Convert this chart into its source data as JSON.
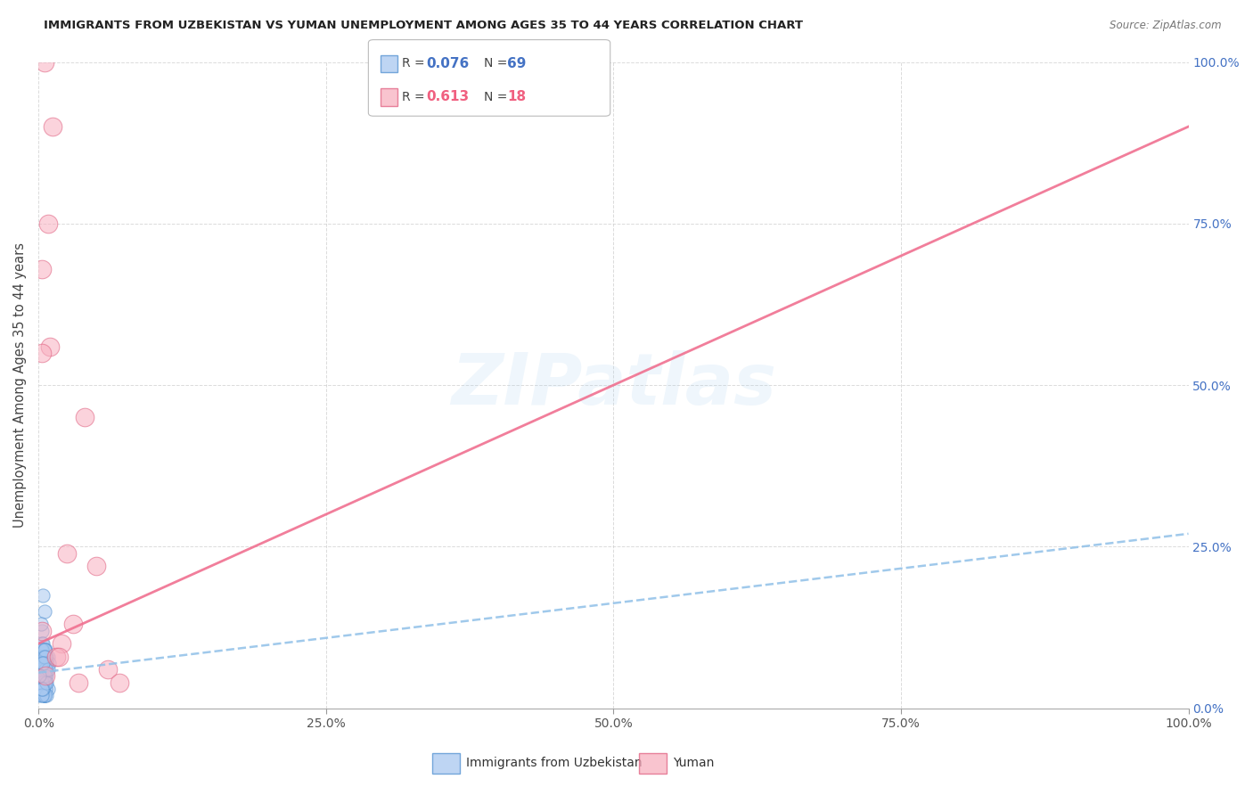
{
  "title": "IMMIGRANTS FROM UZBEKISTAN VS YUMAN UNEMPLOYMENT AMONG AGES 35 TO 44 YEARS CORRELATION CHART",
  "source": "Source: ZipAtlas.com",
  "ylabel": "Unemployment Among Ages 35 to 44 years",
  "xlim": [
    0,
    1
  ],
  "ylim": [
    0,
    1
  ],
  "xticks": [
    0,
    0.25,
    0.5,
    0.75,
    1.0
  ],
  "yticks": [
    0,
    0.25,
    0.5,
    0.75,
    1.0
  ],
  "xticklabels": [
    "0.0%",
    "25.0%",
    "50.0%",
    "75.0%",
    "100.0%"
  ],
  "yticklabels_right": [
    "0.0%",
    "25.0%",
    "50.0%",
    "75.0%",
    "100.0%"
  ],
  "blue_R": 0.076,
  "blue_N": 69,
  "pink_R": 0.613,
  "pink_N": 18,
  "blue_color": "#A8C8F0",
  "blue_edge_color": "#5090D0",
  "pink_color": "#F8B0C0",
  "pink_edge_color": "#E06080",
  "blue_line_color": "#90C0E8",
  "pink_line_color": "#F07090",
  "watermark": "ZIPatlas",
  "legend_labels": [
    "Immigrants from Uzbekistan",
    "Yuman"
  ],
  "blue_scatter_x": [
    0.004,
    0.006,
    0.003,
    0.008,
    0.002,
    0.005,
    0.009,
    0.003,
    0.006,
    0.004,
    0.001,
    0.002,
    0.004,
    0.006,
    0.007,
    0.002,
    0.004,
    0.003,
    0.005,
    0.006,
    0.007,
    0.002,
    0.004,
    0.006,
    0.008,
    0.001,
    0.003,
    0.004,
    0.006,
    0.001,
    0.005,
    0.002,
    0.003,
    0.007,
    0.005,
    0.003,
    0.004,
    0.002,
    0.006,
    0.007,
    0.002,
    0.005,
    0.003,
    0.005,
    0.003,
    0.004,
    0.007,
    0.001,
    0.005,
    0.006,
    0.003,
    0.002,
    0.004,
    0.005,
    0.003,
    0.007,
    0.005,
    0.003,
    0.006,
    0.004,
    0.002,
    0.005,
    0.003,
    0.005,
    0.007,
    0.008,
    0.003,
    0.004,
    0.001
  ],
  "blue_scatter_y": [
    0.175,
    0.05,
    0.12,
    0.08,
    0.03,
    0.15,
    0.07,
    0.1,
    0.04,
    0.09,
    0.02,
    0.06,
    0.1,
    0.04,
    0.08,
    0.13,
    0.05,
    0.07,
    0.02,
    0.09,
    0.06,
    0.09,
    0.04,
    0.07,
    0.03,
    0.08,
    0.05,
    0.02,
    0.06,
    0.04,
    0.09,
    0.03,
    0.07,
    0.05,
    0.02,
    0.08,
    0.04,
    0.06,
    0.03,
    0.07,
    0.05,
    0.02,
    0.09,
    0.04,
    0.06,
    0.03,
    0.07,
    0.05,
    0.02,
    0.08,
    0.04,
    0.06,
    0.03,
    0.07,
    0.05,
    0.02,
    0.09,
    0.04,
    0.06,
    0.03,
    0.07,
    0.05,
    0.02,
    0.08,
    0.04,
    0.06,
    0.03,
    0.07,
    0.05
  ],
  "pink_scatter_x": [
    0.003,
    0.01,
    0.02,
    0.015,
    0.005,
    0.04,
    0.025,
    0.06,
    0.05,
    0.07,
    0.03,
    0.008,
    0.012,
    0.003,
    0.003,
    0.006,
    0.018,
    0.035
  ],
  "pink_scatter_y": [
    0.68,
    0.56,
    0.1,
    0.08,
    1.0,
    0.45,
    0.24,
    0.06,
    0.22,
    0.04,
    0.13,
    0.75,
    0.9,
    0.55,
    0.12,
    0.05,
    0.08,
    0.04
  ],
  "blue_trend_x": [
    0.0,
    1.0
  ],
  "blue_trend_y": [
    0.055,
    0.27
  ],
  "pink_trend_x": [
    0.0,
    1.0
  ],
  "pink_trend_y": [
    0.1,
    0.9
  ]
}
